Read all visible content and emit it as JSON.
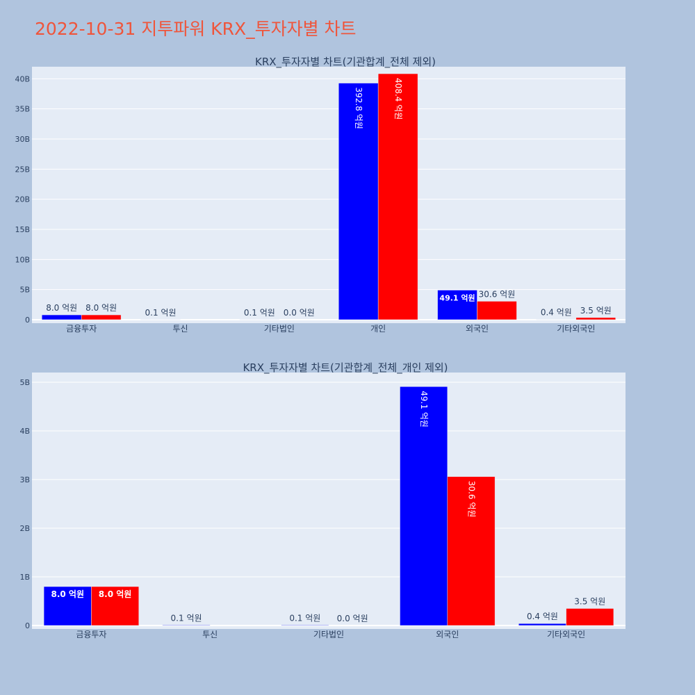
{
  "page": {
    "title": "2022-10-31 지투파워 KRX_투자자별 차트"
  },
  "colors": {
    "page_bg": "#b0c4de",
    "plot_bg": "#e5ecf6",
    "grid": "#ffffff",
    "title": "#ef553b",
    "text": "#2a3f5f",
    "buy": "#0000ff",
    "sell": "#ff0000"
  },
  "chart_data": [
    {
      "type": "bar",
      "title": "KRX_투자자별 차트(기관합계_전체 제외)",
      "categories": [
        "금융투자",
        "투신",
        "기타법인",
        "개인",
        "외국인",
        "기타외국인"
      ],
      "series": [
        {
          "color": "#0000ff",
          "values": [
            800000000,
            10000000,
            10000000,
            39280000000,
            4910000000,
            40000000
          ],
          "labels": [
            "8.0 억원",
            "0.1 억원",
            "0.1 억원",
            "392.8 억원",
            "49.1 억원",
            "0.4 억원"
          ]
        },
        {
          "color": "#ff0000",
          "values": [
            800000000,
            0,
            0,
            40840000000,
            3060000000,
            350000000
          ],
          "labels": [
            "8.0 억원",
            "",
            "0.0 억원",
            "408.4 억원",
            "30.6 억원",
            "3.5 억원"
          ]
        }
      ],
      "yticks": [
        0,
        5000000000,
        10000000000,
        15000000000,
        20000000000,
        25000000000,
        30000000000,
        35000000000,
        40000000000
      ],
      "ytick_labels": [
        "0",
        "5B",
        "10B",
        "15B",
        "20B",
        "25B",
        "30B",
        "35B",
        "40B"
      ],
      "ylim": [
        0,
        42000000000
      ],
      "grid": true,
      "legend": "none"
    },
    {
      "type": "bar",
      "title": "KRX_투자자별 차트(기관합계_전체_개인 제외)",
      "categories": [
        "금융투자",
        "투신",
        "기타법인",
        "외국인",
        "기타외국인"
      ],
      "series": [
        {
          "color": "#0000ff",
          "values": [
            800000000,
            10000000,
            10000000,
            4910000000,
            40000000
          ],
          "labels": [
            "8.0 억원",
            "0.1 억원",
            "0.1 억원",
            "49.1 억원",
            "0.4 억원"
          ]
        },
        {
          "color": "#ff0000",
          "values": [
            800000000,
            0,
            0,
            3060000000,
            350000000
          ],
          "labels": [
            "8.0 억원",
            "",
            "0.0 억원",
            "30.6 억원",
            "3.5 억원"
          ]
        }
      ],
      "yticks": [
        0,
        1000000000,
        2000000000,
        3000000000,
        4000000000,
        5000000000
      ],
      "ytick_labels": [
        "0",
        "1B",
        "2B",
        "3B",
        "4B",
        "5B"
      ],
      "ylim": [
        0,
        5200000000
      ],
      "grid": true,
      "legend": "none"
    }
  ]
}
